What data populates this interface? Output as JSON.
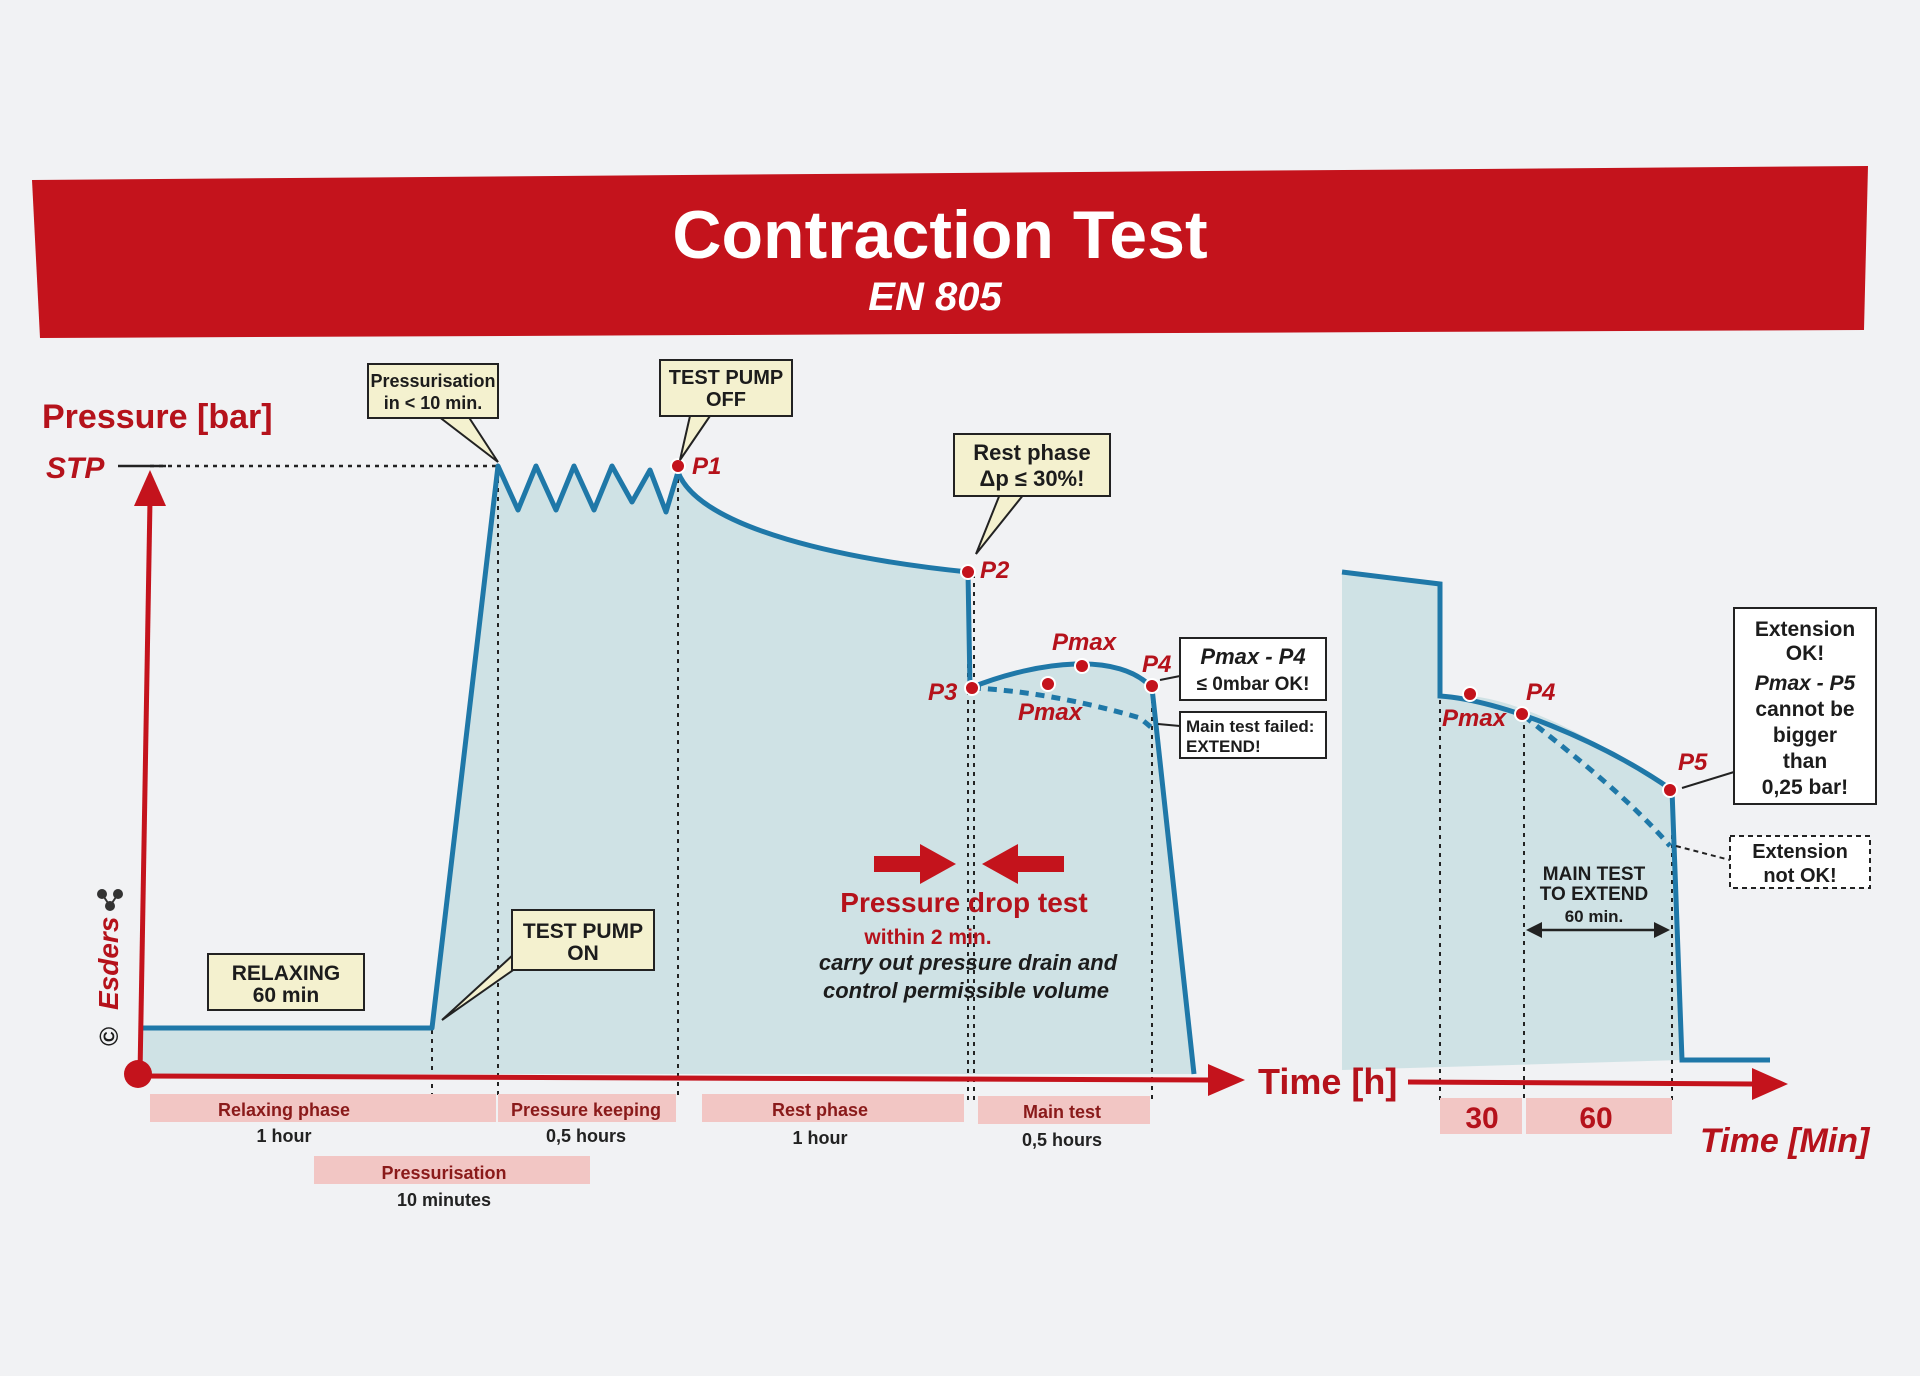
{
  "header": {
    "title": "Contraction Test",
    "subtitle": "EN 805"
  },
  "axes": {
    "y_label": "Pressure [bar]",
    "stp_label": "STP",
    "x_label_h": "Time [h]",
    "x_label_min": "Time [Min]"
  },
  "copyright": "©",
  "brand": "Esders",
  "callouts": {
    "pressurisation": [
      "Pressurisation",
      "in < 10 min."
    ],
    "test_pump_off": [
      "TEST PUMP",
      "OFF"
    ],
    "rest_phase": [
      "Rest phase",
      "Δp ≤ 30%!"
    ],
    "pmax_p4_ok": [
      "Pmax - P4",
      "≤ 0mbar OK!"
    ],
    "main_test_failed": [
      "Main test failed:",
      "EXTEND!"
    ],
    "extension_ok": [
      "Extension",
      "OK!",
      "Pmax - P5",
      "cannot be",
      "bigger",
      "than",
      "0,25 bar!"
    ],
    "extension_not_ok": [
      "Extension",
      "not OK!"
    ],
    "test_pump_on": [
      "TEST PUMP",
      "ON"
    ],
    "relaxing": [
      "RELAXING",
      "60 min"
    ],
    "main_test_extend": [
      "MAIN TEST",
      "TO EXTEND",
      "60 min."
    ]
  },
  "points": {
    "p1": "P1",
    "p2": "P2",
    "p3": "P3",
    "p4": "P4",
    "p5": "P5",
    "pmax": "Pmax"
  },
  "pressure_drop": {
    "title": "Pressure drop test",
    "line1": "within 2 min.",
    "line2": "carry out pressure drain and",
    "line3": "control permissible volume"
  },
  "phases": [
    {
      "label": "Relaxing phase",
      "duration": "1 hour"
    },
    {
      "label": "Pressurisation",
      "duration": "10 minutes"
    },
    {
      "label": "Pressure keeping",
      "duration": "0,5 hours"
    },
    {
      "label": "Rest phase",
      "duration": "1 hour"
    },
    {
      "label": "Main test",
      "duration": "0,5 hours"
    }
  ],
  "minute_ticks": [
    "30",
    "60"
  ],
  "colors": {
    "red": "#b5121b",
    "curve": "#1f78a8",
    "fill": "#c9dfe2",
    "note": "#f4f1cf",
    "band": "#f2c6c4"
  }
}
